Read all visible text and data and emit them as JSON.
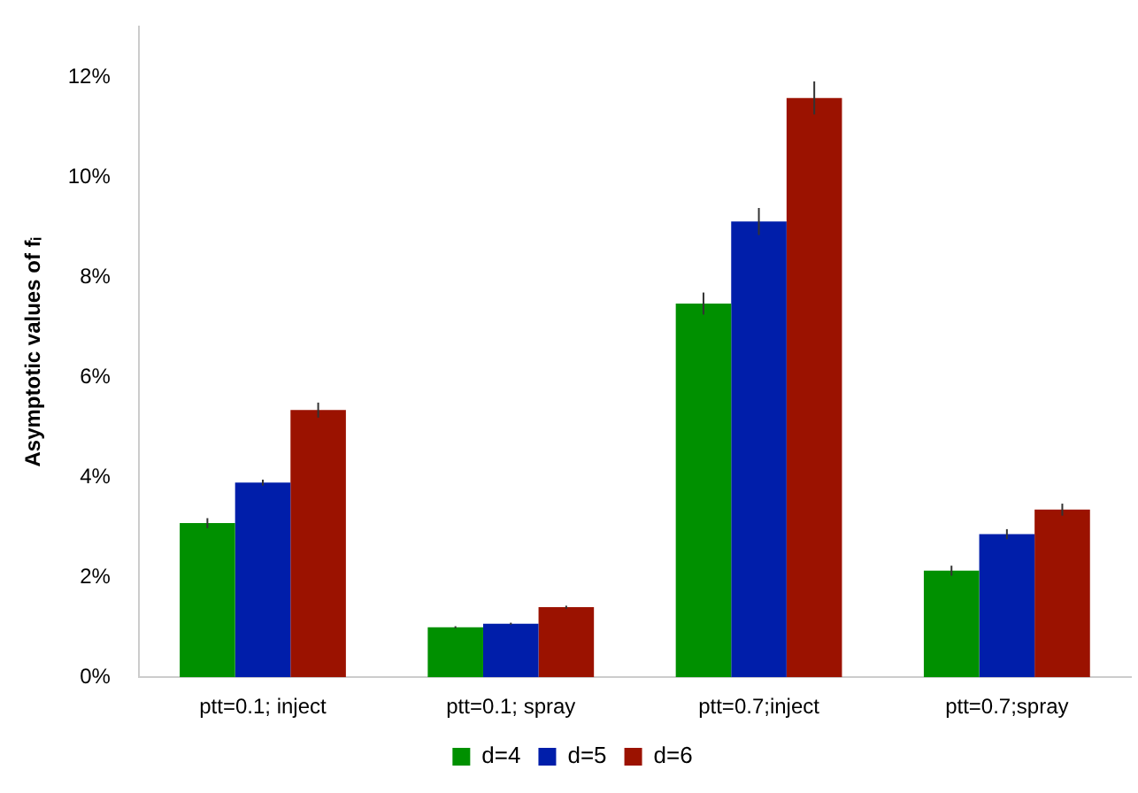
{
  "chart_data": {
    "type": "bar",
    "ylabel": "Asymptotic values of fᵢ",
    "categories": [
      "ptt=0.1; inject",
      "ptt=0.1; spray",
      "ptt=0.7;inject",
      "ptt=0.7;spray"
    ],
    "series": [
      {
        "name": "d=4",
        "color": "#009000",
        "values": [
          3.08,
          1.0,
          7.47,
          2.13
        ],
        "errors": [
          0.1,
          0.02,
          0.22,
          0.1
        ]
      },
      {
        "name": "d=5",
        "color": "#001eaa",
        "values": [
          3.89,
          1.07,
          9.11,
          2.86
        ],
        "errors": [
          0.06,
          0.02,
          0.27,
          0.1
        ]
      },
      {
        "name": "d=6",
        "color": "#9b1200",
        "values": [
          5.34,
          1.4,
          11.58,
          3.35
        ],
        "errors": [
          0.15,
          0.03,
          0.33,
          0.12
        ]
      }
    ],
    "ylim": [
      0,
      13
    ],
    "yticks": [
      {
        "value": 0,
        "label": "0%"
      },
      {
        "value": 2,
        "label": "2%"
      },
      {
        "value": 4,
        "label": "4%"
      },
      {
        "value": 6,
        "label": "6%"
      },
      {
        "value": 8,
        "label": "8%"
      },
      {
        "value": 10,
        "label": "10%"
      },
      {
        "value": 12,
        "label": "12%"
      }
    ],
    "grid": false,
    "legend": "bottom"
  }
}
